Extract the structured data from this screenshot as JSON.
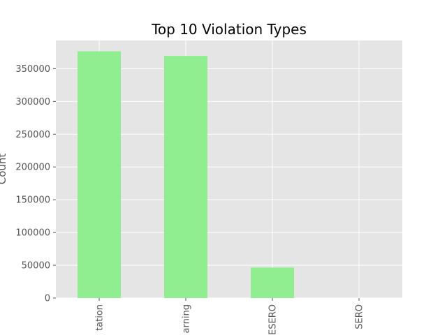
{
  "chart_data": {
    "type": "bar",
    "title": "Top 10 Violation Types",
    "xlabel": "",
    "ylabel": "Count",
    "categories": [
      "tation",
      "arning",
      "ESERO",
      "SERO"
    ],
    "values": [
      376500,
      369500,
      46500,
      0
    ],
    "ylim": [
      0,
      393000
    ],
    "yticks": [
      0,
      50000,
      100000,
      150000,
      200000,
      250000,
      300000,
      350000
    ],
    "ytick_labels": [
      "0",
      "50000",
      "100000",
      "150000",
      "200000",
      "250000",
      "300000",
      "350000"
    ],
    "grid": true,
    "legend": "none",
    "colors": {
      "bar": "#90ee90",
      "plot_background": "#e5e5e5",
      "grid": "#ffffff",
      "tick_text": "#555555"
    }
  }
}
